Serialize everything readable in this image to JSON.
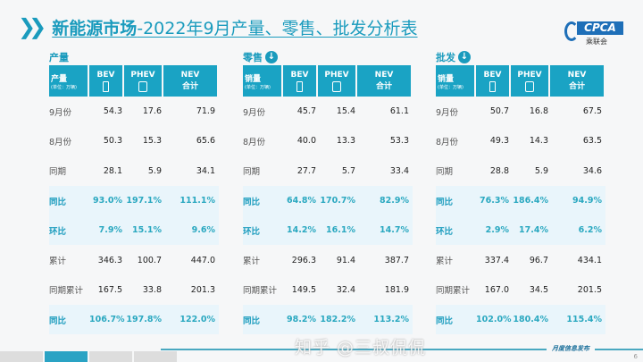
{
  "title": {
    "bold": "新能源市场",
    "rest": "-2022年9月产量、零售、批发分析表"
  },
  "logo": {
    "text": "CPCA",
    "sub": "乘联会"
  },
  "columns": {
    "bev": "BEV",
    "phev": "PHEV",
    "nev": "NEV",
    "nev_sub": "合计",
    "unit": "(单位：万辆)"
  },
  "sections": [
    {
      "label": "产量",
      "has_arrow": false,
      "header": "产量",
      "rows": [
        [
          "9月份",
          "54.3",
          "17.6",
          "71.9"
        ],
        [
          "8月份",
          "50.3",
          "15.3",
          "65.6"
        ],
        [
          "同期",
          "28.1",
          "5.9",
          "34.1"
        ],
        [
          "同比",
          "93.0%",
          "197.1%",
          "111.1%"
        ],
        [
          "环比",
          "7.9%",
          "15.1%",
          "9.6%"
        ],
        [
          "累计",
          "346.3",
          "100.7",
          "447.0"
        ],
        [
          "同期累计",
          "167.5",
          "33.8",
          "201.3"
        ],
        [
          "同比",
          "106.7%",
          "197.8%",
          "122.0%"
        ]
      ]
    },
    {
      "label": "零售",
      "has_arrow": true,
      "header": "销量",
      "rows": [
        [
          "9月份",
          "45.7",
          "15.4",
          "61.1"
        ],
        [
          "8月份",
          "40.0",
          "13.3",
          "53.3"
        ],
        [
          "同期",
          "27.7",
          "5.7",
          "33.4"
        ],
        [
          "同比",
          "64.8%",
          "170.7%",
          "82.9%"
        ],
        [
          "环比",
          "14.2%",
          "16.1%",
          "14.7%"
        ],
        [
          "累计",
          "296.3",
          "91.4",
          "387.7"
        ],
        [
          "同期累计",
          "149.5",
          "32.4",
          "181.9"
        ],
        [
          "同比",
          "98.2%",
          "182.2%",
          "113.2%"
        ]
      ]
    },
    {
      "label": "批发",
      "has_arrow": true,
      "header": "销量",
      "rows": [
        [
          "9月份",
          "50.7",
          "16.8",
          "67.5"
        ],
        [
          "8月份",
          "49.3",
          "14.3",
          "63.5"
        ],
        [
          "同期",
          "28.8",
          "5.9",
          "34.6"
        ],
        [
          "同比",
          "76.3%",
          "186.4%",
          "94.9%"
        ],
        [
          "环比",
          "2.9%",
          "17.4%",
          "6.2%"
        ],
        [
          "累计",
          "337.4",
          "96.7",
          "434.1"
        ],
        [
          "同期累计",
          "167.0",
          "34.5",
          "201.5"
        ],
        [
          "同比",
          "102.0%",
          "180.4%",
          "115.4%"
        ]
      ]
    }
  ],
  "highlight_rows": [
    3,
    4,
    7
  ],
  "footer": {
    "text": "月度信息发布",
    "page": "6",
    "watermark": "知乎 @三叔侃侃"
  },
  "colors": {
    "accent": "#1aa3c4",
    "highlight": "#2aa8c0"
  }
}
